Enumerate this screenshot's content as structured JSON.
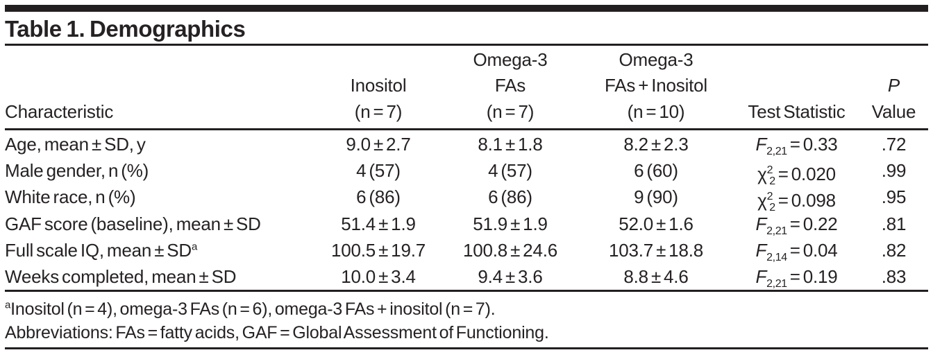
{
  "table": {
    "title": "Table 1. Demographics",
    "columns": [
      {
        "id": "characteristic",
        "header_lines": [
          "Characteristic"
        ]
      },
      {
        "id": "inositol",
        "header_lines": [
          "Inositol",
          "(n = 7)"
        ]
      },
      {
        "id": "omega3",
        "header_lines": [
          "Omega-3",
          "FAs",
          "(n = 7)"
        ]
      },
      {
        "id": "omega3-inositol",
        "header_lines": [
          "Omega-3",
          "FAs + Inositol",
          "(n = 10)"
        ]
      },
      {
        "id": "test-statistic",
        "header_lines": [
          "Test Statistic"
        ]
      },
      {
        "id": "p-value",
        "header_lines": [
          "P",
          "Value"
        ],
        "italic_lines": [
          0
        ]
      }
    ],
    "rows": [
      {
        "characteristic": "Age, mean ± SD, y",
        "inositol": "9.0 ± 2.7",
        "omega3": "8.1 ± 1.8",
        "omega3_inositol": "8.2 ± 2.3",
        "stat": {
          "symbol": "F",
          "italic": true,
          "sup": "",
          "sub": "2,21",
          "eq": "=",
          "value": "0.33"
        },
        "p_value": ".72"
      },
      {
        "characteristic": "Male gender, n (%)",
        "inositol": "4 (57)",
        "omega3": "4 (57)",
        "omega3_inositol": "6 (60)",
        "stat": {
          "symbol": "χ",
          "italic": false,
          "sup": "2",
          "sub": "2",
          "eq": "=",
          "value": "0.020"
        },
        "p_value": ".99"
      },
      {
        "characteristic": "White race, n (%)",
        "inositol": "6 (86)",
        "omega3": "6 (86)",
        "omega3_inositol": "9 (90)",
        "stat": {
          "symbol": "χ",
          "italic": false,
          "sup": "2",
          "sub": "2",
          "eq": "=",
          "value": "0.098"
        },
        "p_value": ".95"
      },
      {
        "characteristic": "GAF score (baseline), mean ± SD",
        "inositol": "51.4 ± 1.9",
        "omega3": "51.9 ± 1.9",
        "omega3_inositol": "52.0 ± 1.6",
        "stat": {
          "symbol": "F",
          "italic": true,
          "sup": "",
          "sub": "2,21",
          "eq": "=",
          "value": "0.22"
        },
        "p_value": ".81"
      },
      {
        "characteristic": "Full scale IQ, mean ± SD",
        "characteristic_sup": "a",
        "inositol": "100.5 ± 19.7",
        "omega3": "100.8 ± 24.6",
        "omega3_inositol": "103.7 ± 18.8",
        "stat": {
          "symbol": "F",
          "italic": true,
          "sup": "",
          "sub": "2,14",
          "eq": "=",
          "value": "0.04"
        },
        "p_value": ".82"
      },
      {
        "characteristic": "Weeks completed, mean ± SD",
        "inositol": "10.0 ± 3.4",
        "omega3": "9.4 ± 3.6",
        "omega3_inositol": "8.8 ± 4.6",
        "stat": {
          "symbol": "F",
          "italic": true,
          "sup": "",
          "sub": "2,21",
          "eq": "=",
          "value": "0.19"
        },
        "p_value": ".83"
      }
    ],
    "footnotes": [
      {
        "marker": "a",
        "text": "Inositol (n = 4), omega-3 FAs (n = 6), omega-3 FAs + inositol (n = 7)."
      },
      {
        "marker": "",
        "text": "Abbreviations: FAs = fatty acids, GAF = Global Assessment of Functioning."
      }
    ]
  },
  "colors": {
    "text": "#262223",
    "rule": "#231f20",
    "background": "#ffffff"
  }
}
